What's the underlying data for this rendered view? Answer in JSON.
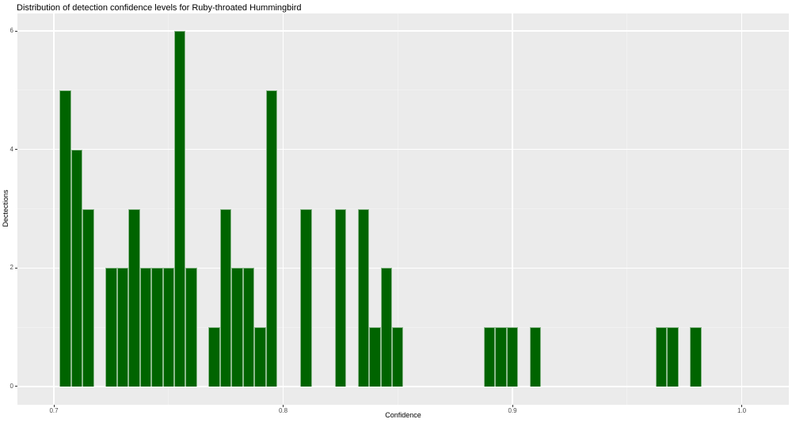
{
  "chart_data": {
    "type": "bar",
    "subtype": "histogram",
    "title": "Distribution of detection confidence levels for Ruby-throated Hummingbird",
    "xlabel": "Confidence",
    "ylabel": "Dectections",
    "bin_width": 0.005,
    "bin_centers": [
      0.705,
      0.71,
      0.715,
      0.72,
      0.725,
      0.73,
      0.735,
      0.74,
      0.745,
      0.75,
      0.755,
      0.76,
      0.765,
      0.77,
      0.775,
      0.78,
      0.785,
      0.79,
      0.795,
      0.8,
      0.805,
      0.81,
      0.815,
      0.82,
      0.825,
      0.83,
      0.835,
      0.84,
      0.845,
      0.85,
      0.855,
      0.86,
      0.865,
      0.87,
      0.875,
      0.88,
      0.885,
      0.89,
      0.895,
      0.9,
      0.905,
      0.91,
      0.915,
      0.92,
      0.925,
      0.93,
      0.935,
      0.94,
      0.945,
      0.95,
      0.955,
      0.96,
      0.965,
      0.97,
      0.975,
      0.98
    ],
    "counts": [
      5,
      4,
      3,
      0,
      2,
      2,
      3,
      2,
      2,
      2,
      6,
      2,
      0,
      1,
      3,
      2,
      2,
      1,
      5,
      0,
      0,
      3,
      0,
      0,
      3,
      0,
      3,
      1,
      2,
      1,
      0,
      0,
      0,
      0,
      0,
      0,
      0,
      1,
      1,
      1,
      0,
      1,
      0,
      0,
      0,
      0,
      0,
      0,
      0,
      0,
      0,
      0,
      1,
      1,
      0,
      1
    ],
    "total_detections": 67,
    "x_axis": {
      "major_ticks": [
        0.7,
        0.8,
        0.9,
        1.0
      ],
      "major_labels": [
        "0.7",
        "0.8",
        "0.9",
        "1.0"
      ],
      "minor_ticks": [
        0.75,
        0.85,
        0.95
      ],
      "range": [
        0.68411,
        1.02055
      ]
    },
    "y_axis": {
      "major_ticks": [
        0,
        2,
        4,
        6
      ],
      "major_labels": [
        "0",
        "2",
        "4",
        "6"
      ],
      "minor_ticks": [
        1,
        3,
        5
      ],
      "range": [
        -0.3007,
        6.2942
      ]
    },
    "grid": "on",
    "legend": "none",
    "colors": {
      "bar_fill": "#006400",
      "bar_border": "rgba(255,255,255,0.55)",
      "panel_background": "#ebebeb",
      "grid_major": "#ffffff",
      "grid_minor": "rgba(255,255,255,0.6)",
      "axis_text": "#4d4d4d",
      "title_text": "#000000",
      "tick_mark": "#333333",
      "figure_background": "#ffffff"
    }
  }
}
